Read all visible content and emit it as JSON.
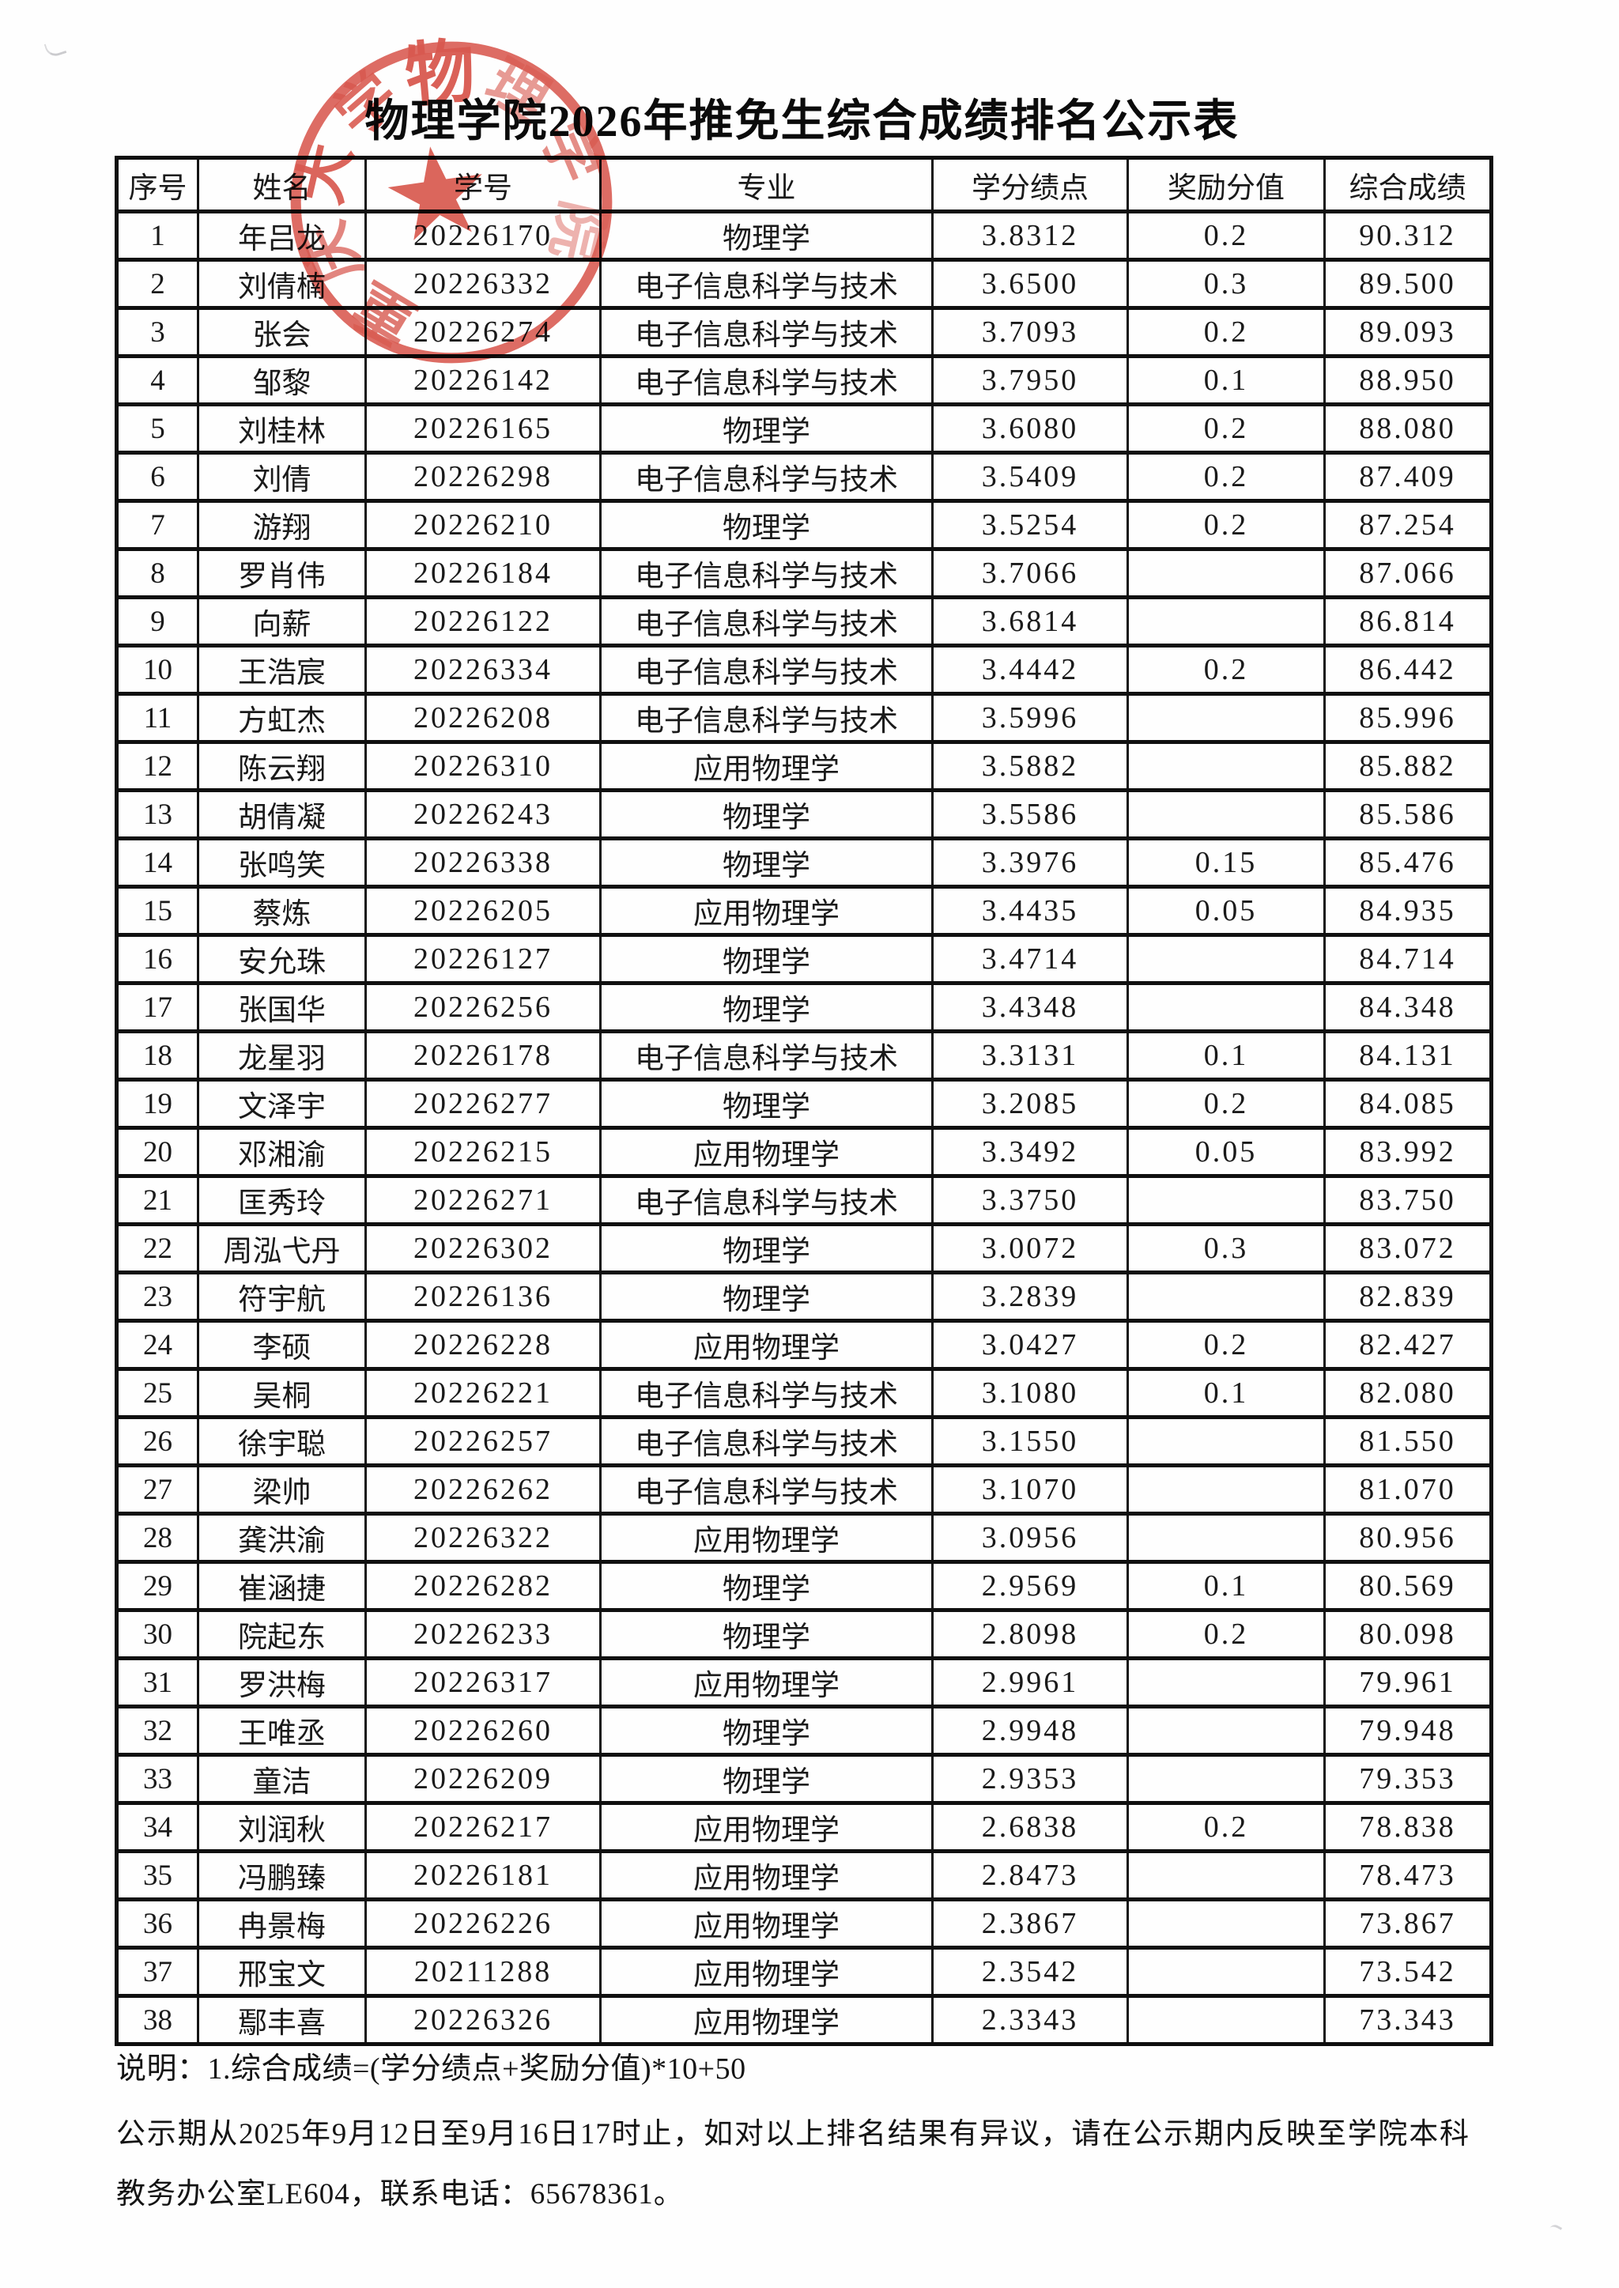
{
  "page": {
    "title": "物理学院2026年推免生综合成绩排名公示表",
    "note": "说明：1.综合成绩=(学分绩点+奖励分值)*10+50",
    "announcement": "公示期从2025年9月12日至9月16日17时止，如对以上排名结果有异议，请在公示期内反映至学院本科教务办公室LE604，联系电话：65678361。"
  },
  "seal": {
    "shape": "round-official-stamp",
    "color": "#d5463b",
    "center_symbol": "five-pointed-star",
    "ring_text": "重庆大学物理学院",
    "ring_chars": [
      "重",
      "庆",
      "大",
      "学",
      "物",
      "理",
      "学",
      "院"
    ],
    "clearly_legible_chars": [
      "物",
      "大",
      "学"
    ]
  },
  "table": {
    "headers": [
      "序号",
      "姓名",
      "学号",
      "专业",
      "学分绩点",
      "奖励分值",
      "综合成绩"
    ],
    "rows": [
      [
        "1",
        "年吕龙",
        "20226170",
        "物理学",
        "3.8312",
        "0.2",
        "90.312"
      ],
      [
        "2",
        "刘倩楠",
        "20226332",
        "电子信息科学与技术",
        "3.6500",
        "0.3",
        "89.500"
      ],
      [
        "3",
        "张会",
        "20226274",
        "电子信息科学与技术",
        "3.7093",
        "0.2",
        "89.093"
      ],
      [
        "4",
        "邹黎",
        "20226142",
        "电子信息科学与技术",
        "3.7950",
        "0.1",
        "88.950"
      ],
      [
        "5",
        "刘桂林",
        "20226165",
        "物理学",
        "3.6080",
        "0.2",
        "88.080"
      ],
      [
        "6",
        "刘倩",
        "20226298",
        "电子信息科学与技术",
        "3.5409",
        "0.2",
        "87.409"
      ],
      [
        "7",
        "游翔",
        "20226210",
        "物理学",
        "3.5254",
        "0.2",
        "87.254"
      ],
      [
        "8",
        "罗肖伟",
        "20226184",
        "电子信息科学与技术",
        "3.7066",
        "",
        "87.066"
      ],
      [
        "9",
        "向薪",
        "20226122",
        "电子信息科学与技术",
        "3.6814",
        "",
        "86.814"
      ],
      [
        "10",
        "王浩宸",
        "20226334",
        "电子信息科学与技术",
        "3.4442",
        "0.2",
        "86.442"
      ],
      [
        "11",
        "方虹杰",
        "20226208",
        "电子信息科学与技术",
        "3.5996",
        "",
        "85.996"
      ],
      [
        "12",
        "陈云翔",
        "20226310",
        "应用物理学",
        "3.5882",
        "",
        "85.882"
      ],
      [
        "13",
        "胡倩凝",
        "20226243",
        "物理学",
        "3.5586",
        "",
        "85.586"
      ],
      [
        "14",
        "张鸣笑",
        "20226338",
        "物理学",
        "3.3976",
        "0.15",
        "85.476"
      ],
      [
        "15",
        "蔡炼",
        "20226205",
        "应用物理学",
        "3.4435",
        "0.05",
        "84.935"
      ],
      [
        "16",
        "安允珠",
        "20226127",
        "物理学",
        "3.4714",
        "",
        "84.714"
      ],
      [
        "17",
        "张国华",
        "20226256",
        "物理学",
        "3.4348",
        "",
        "84.348"
      ],
      [
        "18",
        "龙星羽",
        "20226178",
        "电子信息科学与技术",
        "3.3131",
        "0.1",
        "84.131"
      ],
      [
        "19",
        "文泽宇",
        "20226277",
        "物理学",
        "3.2085",
        "0.2",
        "84.085"
      ],
      [
        "20",
        "邓湘渝",
        "20226215",
        "应用物理学",
        "3.3492",
        "0.05",
        "83.992"
      ],
      [
        "21",
        "匡秀玲",
        "20226271",
        "电子信息科学与技术",
        "3.3750",
        "",
        "83.750"
      ],
      [
        "22",
        "周泓弋丹",
        "20226302",
        "物理学",
        "3.0072",
        "0.3",
        "83.072"
      ],
      [
        "23",
        "符宇航",
        "20226136",
        "物理学",
        "3.2839",
        "",
        "82.839"
      ],
      [
        "24",
        "李硕",
        "20226228",
        "应用物理学",
        "3.0427",
        "0.2",
        "82.427"
      ],
      [
        "25",
        "吴桐",
        "20226221",
        "电子信息科学与技术",
        "3.1080",
        "0.1",
        "82.080"
      ],
      [
        "26",
        "徐宇聪",
        "20226257",
        "电子信息科学与技术",
        "3.1550",
        "",
        "81.550"
      ],
      [
        "27",
        "梁帅",
        "20226262",
        "电子信息科学与技术",
        "3.1070",
        "",
        "81.070"
      ],
      [
        "28",
        "龚洪渝",
        "20226322",
        "应用物理学",
        "3.0956",
        "",
        "80.956"
      ],
      [
        "29",
        "崔涵捷",
        "20226282",
        "物理学",
        "2.9569",
        "0.1",
        "80.569"
      ],
      [
        "30",
        "院起东",
        "20226233",
        "物理学",
        "2.8098",
        "0.2",
        "80.098"
      ],
      [
        "31",
        "罗洪梅",
        "20226317",
        "应用物理学",
        "2.9961",
        "",
        "79.961"
      ],
      [
        "32",
        "王唯丞",
        "20226260",
        "物理学",
        "2.9948",
        "",
        "79.948"
      ],
      [
        "33",
        "童洁",
        "20226209",
        "物理学",
        "2.9353",
        "",
        "79.353"
      ],
      [
        "34",
        "刘润秋",
        "20226217",
        "应用物理学",
        "2.6838",
        "0.2",
        "78.838"
      ],
      [
        "35",
        "冯鹏臻",
        "20226181",
        "应用物理学",
        "2.8473",
        "",
        "78.473"
      ],
      [
        "36",
        "冉景梅",
        "20226226",
        "应用物理学",
        "2.3867",
        "",
        "73.867"
      ],
      [
        "37",
        "邢宝文",
        "20211288",
        "应用物理学",
        "2.3542",
        "",
        "73.542"
      ],
      [
        "38",
        "鄢丰喜",
        "20226326",
        "应用物理学",
        "2.3343",
        "",
        "73.343"
      ]
    ]
  }
}
